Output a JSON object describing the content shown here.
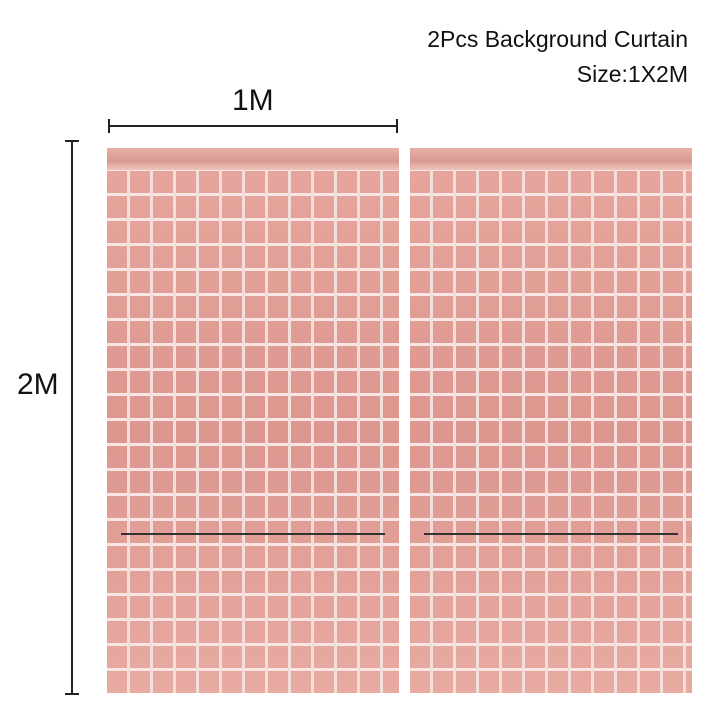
{
  "title": {
    "line1": "2Pcs Background Curtain",
    "line2": "Size:1X2M"
  },
  "dimensions": {
    "width_label": "1M",
    "height_label": "2M"
  },
  "colors": {
    "curtain": "#e0a098",
    "background": "#ffffff"
  }
}
